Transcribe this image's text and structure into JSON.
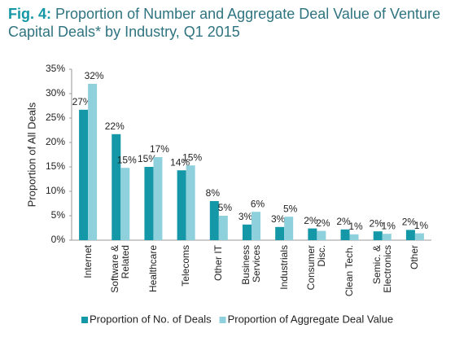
{
  "chart_data": {
    "type": "bar",
    "title": {
      "prefix": "Fig. 4:",
      "text": "Proportion of Number and Aggregate Deal Value of Venture Capital Deals* by Industry, Q1 2015"
    },
    "y_label": "Proportion of All Deals",
    "categories": [
      "Internet",
      "Software & Related",
      "Healthcare",
      "Telecoms",
      "Other IT",
      "Business Services",
      "Industrials",
      "Consumer Disc.",
      "Clean Tech.",
      "Semic. & Electronics",
      "Other"
    ],
    "series": [
      {
        "name": "Proportion of No. of Deals",
        "color": "#1497a6",
        "values": [
          26.7,
          21.7,
          15,
          14.3,
          8,
          3.2,
          2.7,
          2.4,
          2.2,
          1.8,
          2.1
        ],
        "value_labels": [
          "27%",
          "22%",
          "15%",
          "14%",
          "8%",
          "3%",
          "3%",
          "2%",
          "2%",
          "2%",
          "2%"
        ]
      },
      {
        "name": "Proportion of Aggregate Deal Value",
        "color": "#8fd0dd",
        "values": [
          32,
          14.8,
          17,
          15.3,
          5,
          5.8,
          4.8,
          1.9,
          1.2,
          1.3,
          1.4
        ],
        "value_labels": [
          "32%",
          "15%",
          "17%",
          "15%",
          "5%",
          "6%",
          "5%",
          "2%",
          "1%",
          "1%",
          "1%"
        ]
      }
    ],
    "ylim": [
      0,
      35
    ],
    "yticks": [
      {
        "value": 0,
        "label": "0%"
      },
      {
        "value": 5,
        "label": "5%"
      },
      {
        "value": 10,
        "label": "10%"
      },
      {
        "value": 15,
        "label": "15%"
      },
      {
        "value": 20,
        "label": "20%"
      },
      {
        "value": 25,
        "label": "25%"
      },
      {
        "value": 30,
        "label": "30%"
      },
      {
        "value": 35,
        "label": "35%"
      }
    ],
    "legend": "bottom"
  }
}
